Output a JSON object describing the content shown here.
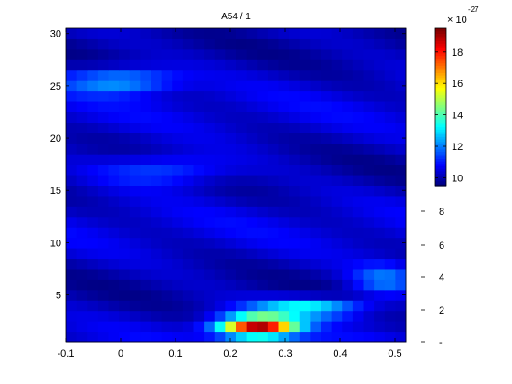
{
  "chart_data": {
    "type": "heatmap",
    "title": "A54 / 1",
    "xlabel": "",
    "ylabel": "",
    "xlim": [
      -0.1,
      0.52
    ],
    "ylim": [
      0.5,
      30.5
    ],
    "xticks": [
      "-0.1",
      "0",
      "0.1",
      "0.2",
      "0.3",
      "0.4",
      "0.5"
    ],
    "yticks": [
      "5",
      "10",
      "15",
      "20",
      "25",
      "30"
    ],
    "grid": false,
    "colorbar": {
      "colormap": "jet",
      "range": [
        9.5,
        19.5
      ],
      "ticks": [
        "10",
        "12",
        "14",
        "16",
        "18"
      ],
      "exponent_label": "× 10",
      "exponent": "-27",
      "extra_ticks": [
        "8",
        "6",
        "4",
        "2",
        "-"
      ]
    },
    "grid_size": {
      "x_count": 32,
      "y_count": 30,
      "x_start": -0.1,
      "x_end": 0.52
    },
    "hotspots": [
      {
        "x": 0.25,
        "y": 2.0,
        "value": 19.0,
        "sx": 0.07,
        "sy": 1.0
      },
      {
        "x": 0.34,
        "y": 3.8,
        "value": 13.5,
        "sx": 0.1,
        "sy": 0.9
      },
      {
        "x": 0.0,
        "y": 25.5,
        "value": 12.5,
        "sx": 0.1,
        "sy": 1.2
      },
      {
        "x": 0.48,
        "y": 6.5,
        "value": 12.0,
        "sx": 0.06,
        "sy": 1.5
      },
      {
        "x": 0.08,
        "y": 17.0,
        "value": 11.8,
        "sx": 0.12,
        "sy": 1.5
      }
    ],
    "base_value": 10.2
  }
}
